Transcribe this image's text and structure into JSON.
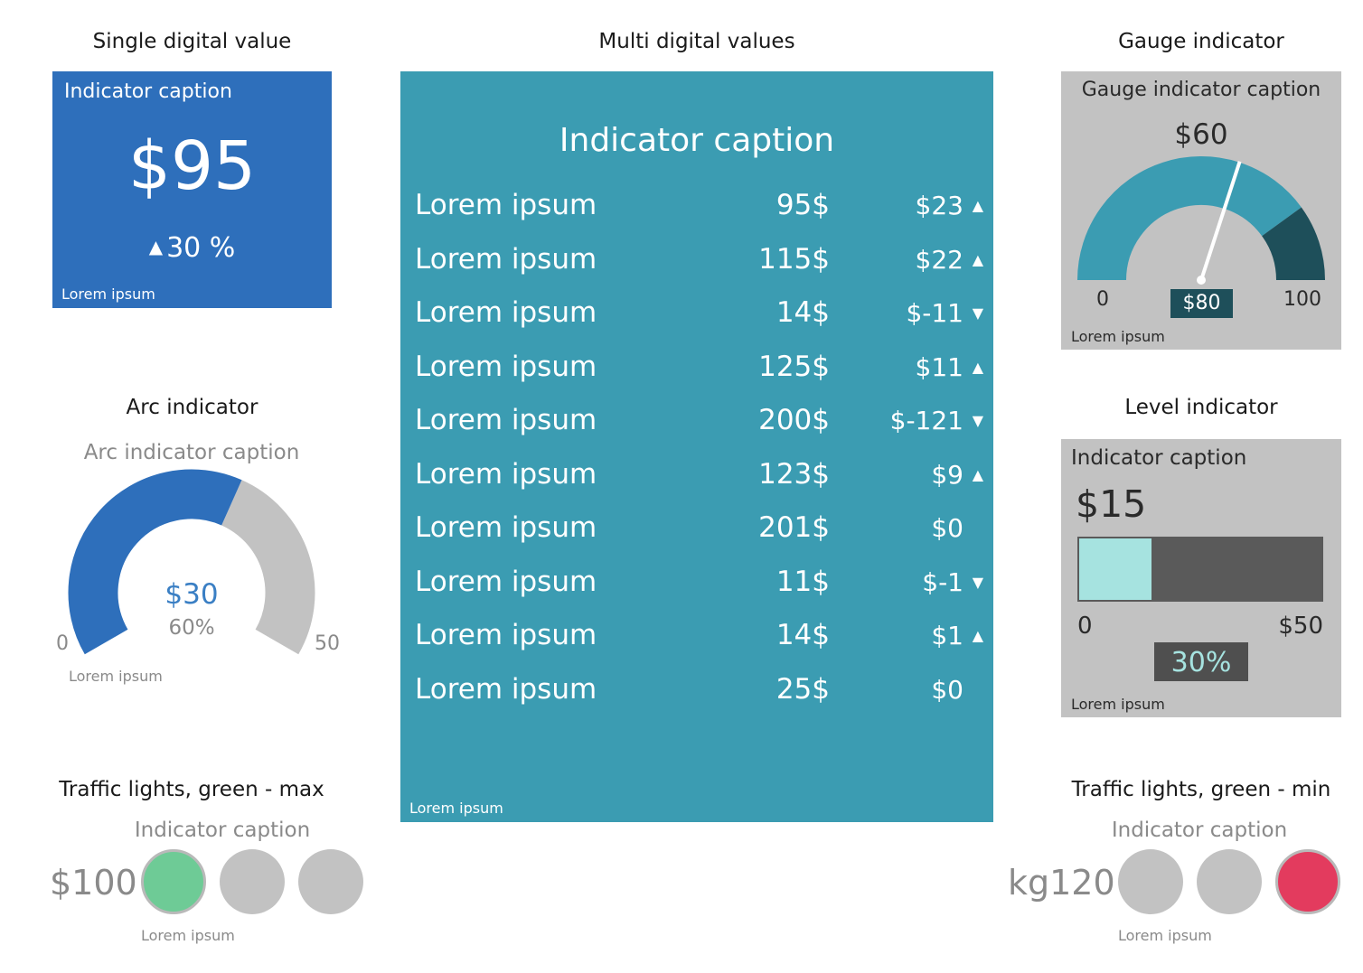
{
  "single": {
    "title": "Single digital value",
    "caption": "Indicator caption",
    "value": "$95",
    "change_text": "30 %",
    "change_dir": "up",
    "footer": "Lorem ipsum",
    "color": "#2e6fbb"
  },
  "multi": {
    "title": "Multi digital values",
    "caption": "Indicator caption",
    "footer": "Lorem ipsum",
    "color": "#3b9cb2",
    "rows": [
      {
        "label": "Lorem ipsum",
        "value": "95$",
        "delta": "$23",
        "dir": "up"
      },
      {
        "label": "Lorem ipsum",
        "value": "115$",
        "delta": "$22",
        "dir": "up"
      },
      {
        "label": "Lorem ipsum",
        "value": "14$",
        "delta": "$-11",
        "dir": "down"
      },
      {
        "label": "Lorem ipsum",
        "value": "125$",
        "delta": "$11",
        "dir": "up"
      },
      {
        "label": "Lorem ipsum",
        "value": "200$",
        "delta": "$-121",
        "dir": "down"
      },
      {
        "label": "Lorem ipsum",
        "value": "123$",
        "delta": "$9",
        "dir": "up"
      },
      {
        "label": "Lorem ipsum",
        "value": "201$",
        "delta": "$0",
        "dir": "none"
      },
      {
        "label": "Lorem ipsum",
        "value": "11$",
        "delta": "$-1",
        "dir": "down"
      },
      {
        "label": "Lorem ipsum",
        "value": "14$",
        "delta": "$1",
        "dir": "up"
      },
      {
        "label": "Lorem ipsum",
        "value": "25$",
        "delta": "$0",
        "dir": "none"
      }
    ]
  },
  "gauge": {
    "title": "Gauge indicator",
    "caption": "Gauge indicator caption",
    "value_label": "$60",
    "min_label": "0",
    "max_label": "100",
    "current_label": "$80",
    "footer": "Lorem ipsum",
    "colors": {
      "track": "#3b9cb2",
      "danger": "#1e4f5a",
      "needle": "#ffffff"
    }
  },
  "arc": {
    "title": "Arc indicator",
    "caption": "Arc indicator caption",
    "value_label": "$30",
    "percent_label": "60%",
    "min_label": "0",
    "max_label": "50",
    "footer": "Lorem ipsum",
    "colors": {
      "fill": "#2e6fbb",
      "rest": "#c2c2c2"
    }
  },
  "level": {
    "title": "Level indicator",
    "caption": "Indicator caption",
    "value_label": "$15",
    "min_label": "0",
    "max_label": "$50",
    "percent_label": "30%",
    "footer": "Lorem ipsum",
    "colors": {
      "fill": "#a6e3e0",
      "track": "#5a5a5a"
    }
  },
  "traffic_max": {
    "title": "Traffic lights, green - max",
    "caption": "Indicator caption",
    "value_label": "$100",
    "footer": "Lorem ipsum",
    "lights": [
      "green",
      "off",
      "off"
    ]
  },
  "traffic_min": {
    "title": "Traffic lights, green - min",
    "caption": "Indicator caption",
    "value_label": "kg120",
    "footer": "Lorem ipsum",
    "lights": [
      "off",
      "off",
      "red"
    ]
  },
  "chart_data": [
    {
      "type": "table",
      "title": "Single digital value",
      "value": 95,
      "change_percent": 30,
      "unit": "$"
    },
    {
      "type": "table",
      "title": "Multi digital values",
      "categories": [
        "Lorem ipsum",
        "Lorem ipsum",
        "Lorem ipsum",
        "Lorem ipsum",
        "Lorem ipsum",
        "Lorem ipsum",
        "Lorem ipsum",
        "Lorem ipsum",
        "Lorem ipsum",
        "Lorem ipsum"
      ],
      "series": [
        {
          "values": [
            95,
            115,
            14,
            125,
            200,
            123,
            201,
            11,
            14,
            25
          ]
        },
        {
          "values": [
            23,
            22,
            -11,
            11,
            -121,
            9,
            0,
            -1,
            1,
            0
          ]
        }
      ]
    },
    {
      "type": "gauge",
      "title": "Gauge indicator",
      "min": 0,
      "max": 100,
      "value": 60,
      "danger_from": 80
    },
    {
      "type": "arc",
      "title": "Arc indicator",
      "min": 0,
      "max": 50,
      "value": 30,
      "percent": 60
    },
    {
      "type": "bar",
      "title": "Level indicator",
      "min": 0,
      "max": 50,
      "value": 15,
      "percent": 30
    },
    {
      "type": "table",
      "title": "Traffic lights, green - max",
      "value": 100,
      "state": "green"
    },
    {
      "type": "table",
      "title": "Traffic lights, green - min",
      "value": 120,
      "state": "red"
    }
  ]
}
